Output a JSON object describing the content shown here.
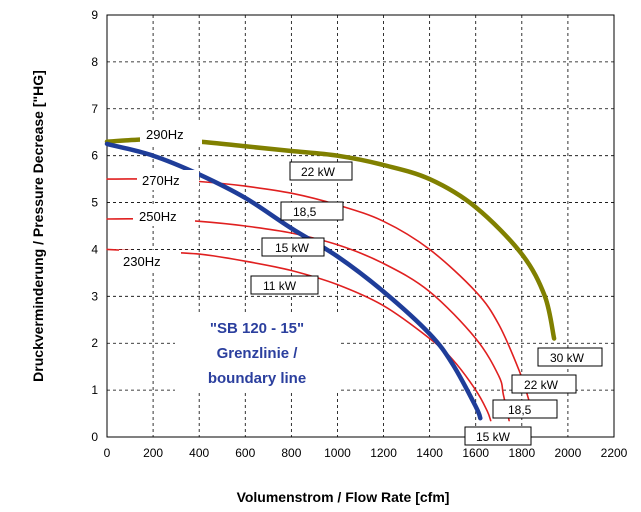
{
  "chart_data": {
    "type": "line",
    "xlabel": "Volumenstrom / Flow Rate [cfm]",
    "ylabel": "Druckverminderung / Pressure Decrease [\"HG]",
    "xlim": [
      0,
      2200
    ],
    "ylim": [
      0,
      9
    ],
    "xticks": [
      "0",
      "200",
      "400",
      "600",
      "800",
      "1000",
      "1200",
      "1400",
      "1600",
      "1800",
      "2000",
      "2200"
    ],
    "yticks": [
      "0",
      "1",
      "2",
      "3",
      "4",
      "5",
      "6",
      "7",
      "8",
      "9"
    ],
    "grid": "dashed vertical and horizontal",
    "series": [
      {
        "name": "290Hz",
        "color": "#808000",
        "x": [
          0,
          200,
          400,
          600,
          800,
          1000,
          1200,
          1400,
          1600,
          1800,
          1900,
          1940
        ],
        "y": [
          6.3,
          6.35,
          6.3,
          6.2,
          6.1,
          6.0,
          5.8,
          5.5,
          4.9,
          3.9,
          3.0,
          2.1
        ]
      },
      {
        "name": "270Hz",
        "color": "#e02020",
        "x": [
          0,
          200,
          400,
          600,
          800,
          1000,
          1200,
          1400,
          1600,
          1700,
          1790,
          1830
        ],
        "y": [
          5.5,
          5.5,
          5.45,
          5.35,
          5.2,
          4.95,
          4.6,
          4.0,
          3.1,
          2.4,
          1.4,
          0.8
        ]
      },
      {
        "name": "250Hz",
        "color": "#e02020",
        "x": [
          0,
          200,
          400,
          600,
          800,
          1000,
          1200,
          1400,
          1600,
          1700,
          1720,
          1745
        ],
        "y": [
          4.65,
          4.65,
          4.6,
          4.5,
          4.35,
          4.1,
          3.7,
          3.1,
          2.1,
          1.3,
          0.9,
          0.35
        ]
      },
      {
        "name": "230Hz",
        "color": "#e02020",
        "x": [
          0,
          200,
          400,
          600,
          800,
          1000,
          1200,
          1400,
          1500,
          1600,
          1650,
          1665
        ],
        "y": [
          4.0,
          3.95,
          3.9,
          3.75,
          3.55,
          3.25,
          2.8,
          2.1,
          1.65,
          1.0,
          0.55,
          0.35
        ]
      },
      {
        "name": "\"SB 120 - 15\" Grenzlinie / boundary line",
        "color": "#1f3d99",
        "x": [
          0,
          200,
          400,
          600,
          800,
          1000,
          1200,
          1400,
          1500,
          1600,
          1620
        ],
        "y": [
          6.25,
          6.0,
          5.6,
          5.1,
          4.45,
          3.85,
          3.1,
          2.2,
          1.55,
          0.65,
          0.4
        ]
      }
    ],
    "curve_labels": [
      "290Hz",
      "270Hz",
      "250Hz",
      "230Hz"
    ],
    "power_labels": {
      "top": [
        "22 kW",
        "18,5",
        "15 kW",
        "11 kW"
      ],
      "end": [
        "30 kW",
        "22 kW",
        "18,5",
        "15 kW"
      ]
    },
    "annotation": [
      "\"SB 120 - 15\"",
      "Grenzlinie /",
      "boundary line"
    ],
    "annotation_color": "#2b3f9e"
  }
}
